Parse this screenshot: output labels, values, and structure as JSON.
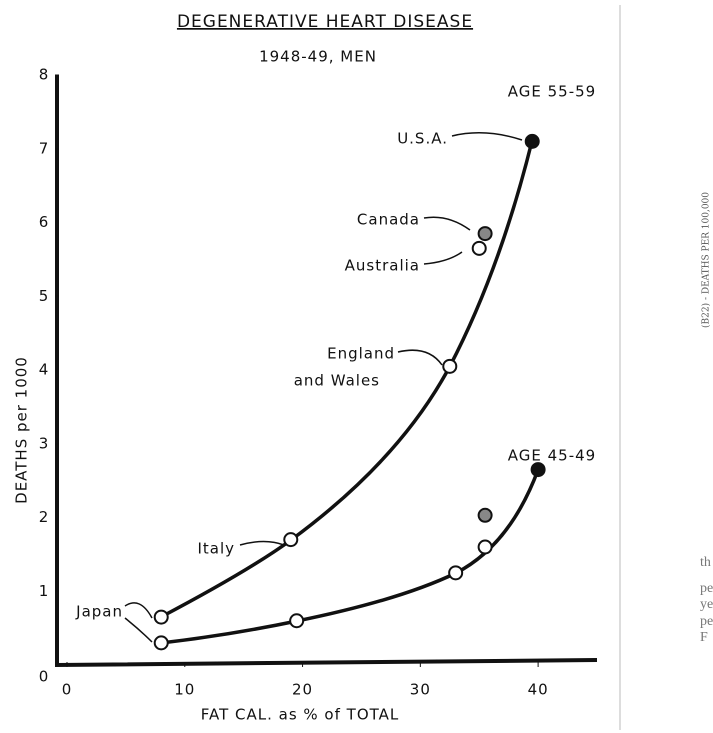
{
  "chart_data": {
    "type": "scatter",
    "title": "DEGENERATIVE HEART DISEASE",
    "subtitle": "1948-49, MEN",
    "x_label": "FAT CAL. as % of TOTAL",
    "y_label": "DEATHS per 1000",
    "xlim": [
      0,
      45
    ],
    "xticks": [
      0,
      10,
      20,
      30,
      40
    ],
    "ylim": [
      0,
      8
    ],
    "yticks": [
      0,
      1,
      2,
      3,
      4,
      5,
      6,
      7,
      8
    ],
    "series": [
      {
        "name": "AGE 55-59",
        "color": "#111111",
        "x": [
          8,
          19,
          32.5,
          35,
          35.5,
          39.5
        ],
        "values": [
          0.65,
          1.7,
          4.05,
          5.65,
          5.85,
          7.1
        ],
        "marker_fills": [
          "#ffffff",
          "#ffffff",
          "#ffffff",
          "#ffffff",
          "#888888",
          "#111111"
        ]
      },
      {
        "name": "AGE 45-49",
        "color": "#111111",
        "x": [
          8,
          19.5,
          33,
          35.5,
          35.5,
          40
        ],
        "values": [
          0.3,
          0.6,
          1.25,
          1.6,
          2.03,
          2.65
        ],
        "marker_fills": [
          "#ffffff",
          "#ffffff",
          "#ffffff",
          "#ffffff",
          "#888888",
          "#111111"
        ]
      }
    ],
    "annotations": [
      "U.S.A.",
      "Canada",
      "Australia",
      "England",
      "and Wales",
      "Italy",
      "Japan"
    ],
    "side_label": "(B22) - DEATHS PER 100,000",
    "margin_fragments": [
      "th",
      "pe",
      "ye",
      "pe",
      "F"
    ]
  }
}
